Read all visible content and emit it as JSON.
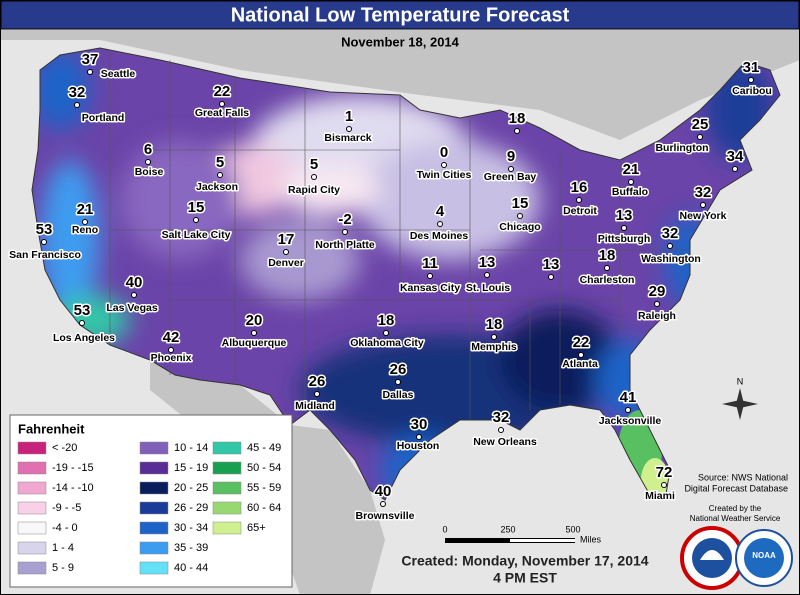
{
  "title": "National Low Temperature Forecast",
  "date": "November 18, 2014",
  "cities": [
    {
      "name": "Seattle",
      "low": 37
    },
    {
      "name": "Portland",
      "low": 32
    },
    {
      "name": "Great Falls",
      "low": 22
    },
    {
      "name": "Bismarck",
      "low": 1
    },
    {
      "name": "Twin Cities",
      "low": 0
    },
    {
      "name": "Green Bay",
      "low": 9
    },
    {
      "name": null,
      "low": 18
    },
    {
      "name": "Caribou",
      "low": 31
    },
    {
      "name": "Burlington",
      "low": 25
    },
    {
      "name": "Boise",
      "low": 6
    },
    {
      "name": "Jackson",
      "low": 5
    },
    {
      "name": "Rapid City",
      "low": 5
    },
    {
      "name": "Detroit",
      "low": 16
    },
    {
      "name": "Buffalo",
      "low": 21
    },
    {
      "name": null,
      "low": 34
    },
    {
      "name": "New York",
      "low": 32
    },
    {
      "name": "Reno",
      "low": 21
    },
    {
      "name": "Salt Lake City",
      "low": 15
    },
    {
      "name": "North Platte",
      "low": -2
    },
    {
      "name": "Des Moines",
      "low": 4
    },
    {
      "name": "Chicago",
      "low": 15
    },
    {
      "name": "Pittsburgh",
      "low": 13
    },
    {
      "name": "Washington",
      "low": 32
    },
    {
      "name": "San Francisco",
      "low": 53
    },
    {
      "name": "Denver",
      "low": 17
    },
    {
      "name": "Kansas City",
      "low": 11
    },
    {
      "name": "St. Louis",
      "low": 13
    },
    {
      "name": null,
      "low": 13
    },
    {
      "name": "Charleston",
      "low": 18
    },
    {
      "name": "Las Vegas",
      "low": 40
    },
    {
      "name": "Raleigh",
      "low": 29
    },
    {
      "name": "Los Angeles",
      "low": 53
    },
    {
      "name": "Phoenix",
      "low": 42
    },
    {
      "name": "Albuquerque",
      "low": 20
    },
    {
      "name": "Oklahoma City",
      "low": 18
    },
    {
      "name": "Memphis",
      "low": 18
    },
    {
      "name": "Atlanta",
      "low": 22
    },
    {
      "name": "Midland",
      "low": 26
    },
    {
      "name": "Dallas",
      "low": 26
    },
    {
      "name": "Jacksonville",
      "low": 41
    },
    {
      "name": "New Orleans",
      "low": 32
    },
    {
      "name": "Houston",
      "low": 30
    },
    {
      "name": "Miami",
      "low": 72
    },
    {
      "name": "Brownsville",
      "low": 40
    }
  ],
  "legend": {
    "title": "Fahrenheit",
    "items": [
      {
        "label": "< -20",
        "color": "#c8227a"
      },
      {
        "label": "-19 - -15",
        "color": "#e070b0"
      },
      {
        "label": "-14 - -10",
        "color": "#f0a8d0"
      },
      {
        "label": "-9 - -5",
        "color": "#f8d0e8"
      },
      {
        "label": "-4 - 0",
        "color": "#f8f8f8"
      },
      {
        "label": "1 - 4",
        "color": "#d8d4ec"
      },
      {
        "label": "5 - 9",
        "color": "#a8a0d0"
      },
      {
        "label": "10 - 14",
        "color": "#8060b8"
      },
      {
        "label": "15 - 19",
        "color": "#5a2c96"
      },
      {
        "label": "20 - 25",
        "color": "#0a1e5c"
      },
      {
        "label": "26 - 29",
        "color": "#1a3c98"
      },
      {
        "label": "30 - 34",
        "color": "#1e64c8"
      },
      {
        "label": "35 - 39",
        "color": "#3c9cf0"
      },
      {
        "label": "40 - 44",
        "color": "#64e0f8"
      },
      {
        "label": "45 - 49",
        "color": "#30c8a8"
      },
      {
        "label": "50 - 54",
        "color": "#18a050"
      },
      {
        "label": "55 - 59",
        "color": "#58c060"
      },
      {
        "label": "60 - 64",
        "color": "#98d870"
      },
      {
        "label": "65+",
        "color": "#d0f090"
      }
    ]
  },
  "source": [
    "Source: NWS National",
    "Digital Forecast Database"
  ],
  "credit": [
    "Created by the",
    "National Weather Service"
  ],
  "created": [
    "Created: Monday, November 17, 2014",
    "4 PM EST"
  ],
  "scale": {
    "ticks": [
      "0",
      "250",
      "500"
    ],
    "unit": "Miles"
  },
  "north": "N",
  "logo": "NOAA"
}
